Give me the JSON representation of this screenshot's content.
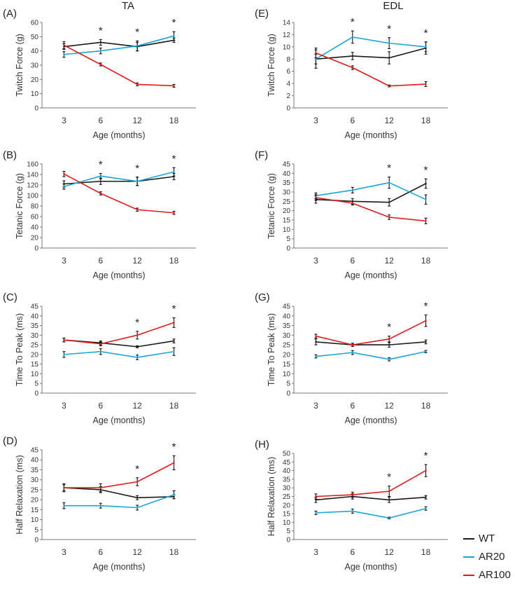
{
  "figure": {
    "left_title": "TA",
    "right_title": "EDL"
  },
  "colors": {
    "WT": "#1a1a1a",
    "AR20": "#1aa3d9",
    "AR100": "#e01a1a"
  },
  "legend": [
    {
      "name": "WT",
      "color": "#1a1a1a"
    },
    {
      "name": "AR20",
      "color": "#1aa3d9"
    },
    {
      "name": "AR100",
      "color": "#e01a1a"
    }
  ],
  "chart_data": [
    {
      "panel": "(A)",
      "type": "line",
      "muscle": "TA",
      "title": "",
      "xlabel": "Age (months)",
      "ylabel": "Twitch Force (g)",
      "categories": [
        "3",
        "6",
        "12",
        "18"
      ],
      "ylim": [
        0,
        60
      ],
      "yticks": [
        0,
        10,
        20,
        30,
        40,
        50,
        60
      ],
      "significance": [
        "",
        "*",
        "*",
        "*"
      ],
      "series": [
        {
          "name": "WT",
          "values": [
            43,
            46,
            43,
            47.5
          ],
          "errors": [
            2,
            2,
            3,
            1.5
          ]
        },
        {
          "name": "AR20",
          "values": [
            37.5,
            40,
            43.5,
            50.5
          ],
          "errors": [
            2,
            2,
            3.5,
            3
          ]
        },
        {
          "name": "AR100",
          "values": [
            44,
            30.5,
            16.5,
            15.5
          ],
          "errors": [
            2.5,
            1,
            1,
            1
          ]
        }
      ]
    },
    {
      "panel": "(B)",
      "type": "line",
      "muscle": "TA",
      "title": "",
      "xlabel": "Age (months)",
      "ylabel": "Tetanic Force (g)",
      "categories": [
        "3",
        "6",
        "12",
        "18"
      ],
      "ylim": [
        0,
        160
      ],
      "yticks": [
        0,
        20,
        40,
        60,
        80,
        100,
        120,
        140,
        160
      ],
      "significance": [
        "",
        "*",
        "*",
        "*"
      ],
      "series": [
        {
          "name": "WT",
          "values": [
            122,
            127,
            127,
            136
          ],
          "errors": [
            6,
            6,
            8,
            6
          ]
        },
        {
          "name": "AR20",
          "values": [
            117,
            137,
            127,
            145
          ],
          "errors": [
            5,
            5,
            8,
            8
          ]
        },
        {
          "name": "AR100",
          "values": [
            141,
            104,
            73,
            67
          ],
          "errors": [
            5,
            3,
            3,
            3
          ]
        }
      ]
    },
    {
      "panel": "(C)",
      "type": "line",
      "muscle": "TA",
      "title": "",
      "xlabel": "Age (months)",
      "ylabel": "Time To Peak (ms)",
      "categories": [
        "3",
        "6",
        "12",
        "18"
      ],
      "ylim": [
        0,
        45
      ],
      "yticks": [
        0,
        5,
        10,
        15,
        20,
        25,
        30,
        35,
        40,
        45
      ],
      "significance": [
        "",
        "",
        "*",
        "*"
      ],
      "series": [
        {
          "name": "WT",
          "values": [
            27.5,
            26,
            24,
            27
          ],
          "errors": [
            1,
            1,
            0.5,
            1
          ]
        },
        {
          "name": "AR20",
          "values": [
            20,
            21.5,
            18.5,
            21.5
          ],
          "errors": [
            1.5,
            1.5,
            1.2,
            2
          ]
        },
        {
          "name": "AR100",
          "values": [
            27.5,
            25.5,
            30,
            36.5
          ],
          "errors": [
            1,
            1,
            2,
            2.5
          ]
        }
      ]
    },
    {
      "panel": "(D)",
      "type": "line",
      "muscle": "TA",
      "title": "",
      "xlabel": "Age (months)",
      "ylabel": "Half Relaxation (ms)",
      "categories": [
        "3",
        "6",
        "12",
        "18"
      ],
      "ylim": [
        0,
        45
      ],
      "yticks": [
        0,
        5,
        10,
        15,
        20,
        25,
        30,
        35,
        40,
        45
      ],
      "significance": [
        "",
        "",
        "*",
        "*"
      ],
      "series": [
        {
          "name": "WT",
          "values": [
            26,
            25,
            21,
            21.5
          ],
          "errors": [
            1.5,
            1.5,
            1,
            1
          ]
        },
        {
          "name": "AR20",
          "values": [
            17,
            17,
            16,
            22.5
          ],
          "errors": [
            1.5,
            1.2,
            1.2,
            2
          ]
        },
        {
          "name": "AR100",
          "values": [
            26,
            26,
            29,
            38.5
          ],
          "errors": [
            2,
            2,
            2,
            3.5
          ]
        }
      ]
    },
    {
      "panel": "(E)",
      "type": "line",
      "muscle": "EDL",
      "title": "",
      "xlabel": "Age (months)",
      "ylabel": "Twitch Force (g)",
      "categories": [
        "3",
        "6",
        "12",
        "18"
      ],
      "ylim": [
        0,
        14
      ],
      "yticks": [
        0,
        2,
        4,
        6,
        8,
        10,
        12,
        14
      ],
      "significance": [
        "",
        "*",
        "*",
        "*"
      ],
      "series": [
        {
          "name": "WT",
          "values": [
            8,
            8.5,
            8.2,
            9.8
          ],
          "errors": [
            1.5,
            0.6,
            1,
            1
          ]
        },
        {
          "name": "AR20",
          "values": [
            8,
            11.6,
            10.6,
            10
          ],
          "errors": [
            0.8,
            1,
            0.9,
            0.8
          ]
        },
        {
          "name": "AR100",
          "values": [
            9,
            6.6,
            3.6,
            3.9
          ],
          "errors": [
            0.8,
            0.3,
            0.15,
            0.4
          ]
        }
      ]
    },
    {
      "panel": "(F)",
      "type": "line",
      "muscle": "EDL",
      "title": "",
      "xlabel": "Age (months)",
      "ylabel": "Tetanic Force (g)",
      "categories": [
        "3",
        "6",
        "12",
        "18"
      ],
      "ylim": [
        0,
        45
      ],
      "yticks": [
        0,
        5,
        10,
        15,
        20,
        25,
        30,
        35,
        40,
        45
      ],
      "significance": [
        "",
        "",
        "*",
        "*"
      ],
      "series": [
        {
          "name": "WT",
          "values": [
            26,
            25,
            24.5,
            34.5
          ],
          "errors": [
            2,
            1.5,
            2,
            2.5
          ]
        },
        {
          "name": "AR20",
          "values": [
            28,
            31,
            35,
            26
          ],
          "errors": [
            1.5,
            1.5,
            3,
            2.5
          ]
        },
        {
          "name": "AR100",
          "values": [
            27,
            24,
            16.5,
            14.5
          ],
          "errors": [
            1.5,
            1,
            1.2,
            1.5
          ]
        }
      ]
    },
    {
      "panel": "(G)",
      "type": "line",
      "muscle": "EDL",
      "title": "",
      "xlabel": "Age (months)",
      "ylabel": "Time To Peak (ms)",
      "categories": [
        "3",
        "6",
        "12",
        "18"
      ],
      "ylim": [
        0,
        45
      ],
      "yticks": [
        0,
        5,
        10,
        15,
        20,
        25,
        30,
        35,
        40,
        45
      ],
      "significance": [
        "",
        "",
        "*",
        "*"
      ],
      "series": [
        {
          "name": "WT",
          "values": [
            26.5,
            25,
            25,
            26.5
          ],
          "errors": [
            1.5,
            0.8,
            1.2,
            1
          ]
        },
        {
          "name": "AR20",
          "values": [
            19,
            21,
            17.5,
            21.5
          ],
          "errors": [
            0.8,
            1,
            0.8,
            0.6
          ]
        },
        {
          "name": "AR100",
          "values": [
            29.5,
            25,
            28,
            37.5
          ],
          "errors": [
            1,
            0.8,
            1.5,
            3
          ]
        }
      ]
    },
    {
      "panel": "(H)",
      "type": "line",
      "muscle": "EDL",
      "title": "",
      "xlabel": "Age (months)",
      "ylabel": "Half Relaxation (ms)",
      "categories": [
        "3",
        "6",
        "12",
        "18"
      ],
      "ylim": [
        0,
        50
      ],
      "yticks": [
        0,
        5,
        10,
        15,
        20,
        25,
        30,
        35,
        40,
        45,
        50
      ],
      "significance": [
        "",
        "",
        "*",
        "*"
      ],
      "series": [
        {
          "name": "WT",
          "values": [
            23,
            25,
            23,
            24.5
          ],
          "errors": [
            1.5,
            1.5,
            1.5,
            1
          ]
        },
        {
          "name": "AR20",
          "values": [
            15.5,
            16.5,
            12.5,
            18
          ],
          "errors": [
            1,
            1.2,
            0.5,
            1
          ]
        },
        {
          "name": "AR100",
          "values": [
            25,
            26,
            28,
            40
          ],
          "errors": [
            1.5,
            1.5,
            3,
            3.5
          ]
        }
      ]
    }
  ]
}
